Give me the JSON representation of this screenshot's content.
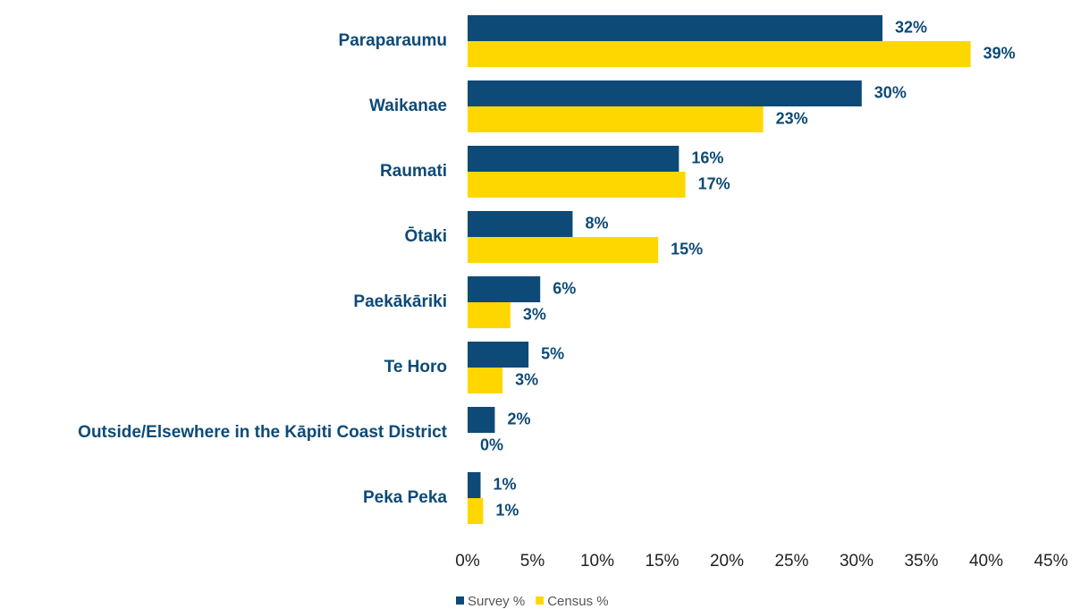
{
  "chart_data": {
    "type": "hbar",
    "categories": [
      "Paraparaumu",
      "Waikanae",
      "Raumati",
      "Ōtaki",
      "Paekākāriki",
      "Te Horo",
      "Outside/Elsewhere in the Kāpiti Coast District",
      "Peka Peka"
    ],
    "series": [
      {
        "name": "Survey %",
        "color": "#0d4a77",
        "values": [
          32,
          30.4,
          16.3,
          8.1,
          5.6,
          4.7,
          2.1,
          1
        ],
        "value_labels": [
          "32%",
          "30%",
          "16%",
          "8%",
          "6%",
          "5%",
          "2%",
          "1%"
        ]
      },
      {
        "name": "Census %",
        "color": "#ffd700",
        "values": [
          38.8,
          22.8,
          16.8,
          14.7,
          3.3,
          2.7,
          0,
          1.2
        ],
        "value_labels": [
          "39%",
          "23%",
          "17%",
          "15%",
          "3%",
          "3%",
          "0%",
          "1%"
        ]
      }
    ],
    "xlim": [
      0,
      45
    ],
    "xticks": [
      {
        "value": 0,
        "label": "0%"
      },
      {
        "value": 5,
        "label": "5%"
      },
      {
        "value": 10,
        "label": "10%"
      },
      {
        "value": 15,
        "label": "15%"
      },
      {
        "value": 20,
        "label": "20%"
      },
      {
        "value": 25,
        "label": "25%"
      },
      {
        "value": 30,
        "label": "30%"
      },
      {
        "value": 35,
        "label": "35%"
      },
      {
        "value": 40,
        "label": "40%"
      },
      {
        "value": 45,
        "label": "45%"
      }
    ],
    "grid": false,
    "legend": "bottom"
  }
}
